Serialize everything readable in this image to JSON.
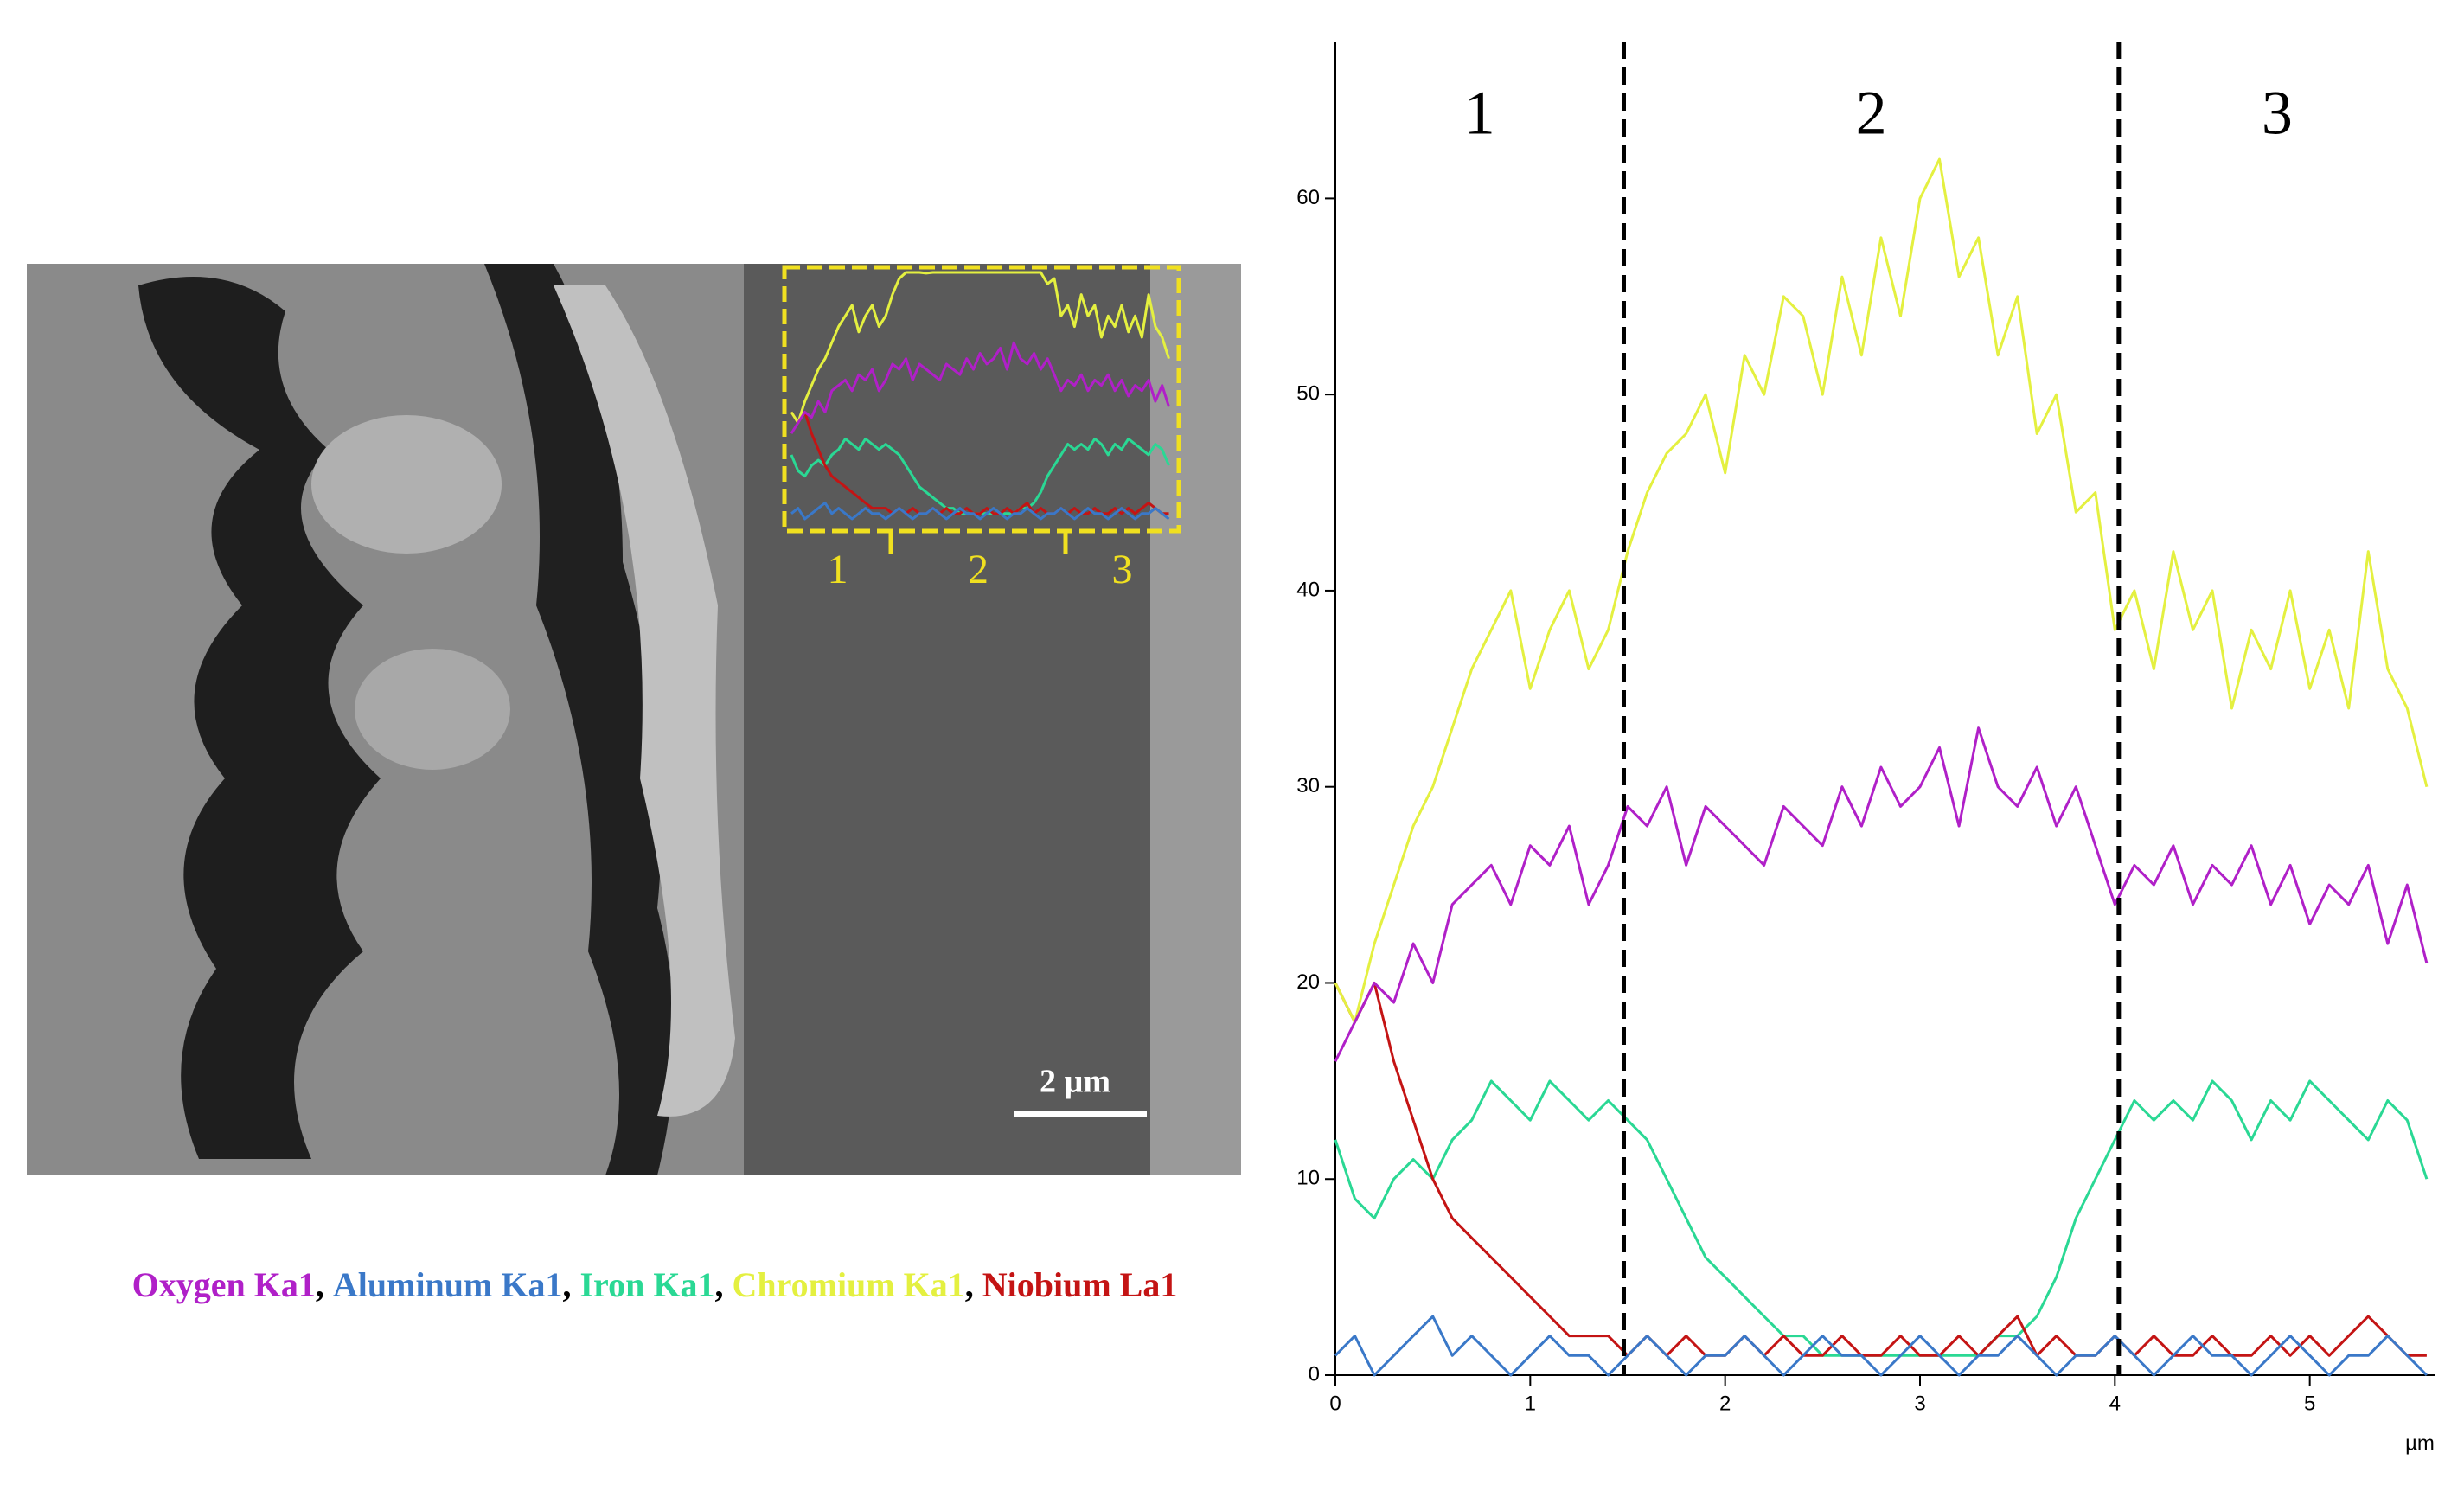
{
  "scale_bar_label": "2 µm",
  "legend_separator": ",",
  "chart_data": {
    "type": "line",
    "x_label": "µm",
    "xlim": [
      0,
      5.645
    ],
    "ylim": [
      0,
      68
    ],
    "xticks": [
      0,
      1,
      2,
      3,
      4,
      5
    ],
    "yticks": [
      0,
      10,
      20,
      30,
      40,
      50,
      60
    ],
    "region_boundaries": [
      1.48,
      4.02
    ],
    "region_labels": [
      "1",
      "2",
      "3"
    ],
    "x": [
      0,
      0.1,
      0.2,
      0.3,
      0.4,
      0.5,
      0.6,
      0.7,
      0.8,
      0.9,
      1.0,
      1.1,
      1.2,
      1.3,
      1.4,
      1.5,
      1.6,
      1.7,
      1.8,
      1.9,
      2.0,
      2.1,
      2.2,
      2.3,
      2.4,
      2.5,
      2.6,
      2.7,
      2.8,
      2.9,
      3.0,
      3.1,
      3.2,
      3.3,
      3.4,
      3.5,
      3.6,
      3.7,
      3.8,
      3.9,
      4.0,
      4.1,
      4.2,
      4.3,
      4.4,
      4.5,
      4.6,
      4.7,
      4.8,
      4.9,
      5.0,
      5.1,
      5.2,
      5.3,
      5.4,
      5.5,
      5.6
    ],
    "series": [
      {
        "name": "Oxygen Ka1",
        "color": "#b020c8",
        "values": [
          16,
          18,
          20,
          19,
          22,
          20,
          24,
          25,
          26,
          24,
          27,
          26,
          28,
          24,
          26,
          29,
          28,
          30,
          26,
          29,
          28,
          27,
          26,
          29,
          28,
          27,
          30,
          28,
          31,
          29,
          30,
          32,
          28,
          33,
          30,
          29,
          31,
          28,
          30,
          27,
          24,
          26,
          25,
          27,
          24,
          26,
          25,
          27,
          24,
          26,
          23,
          25,
          24,
          26,
          22,
          25,
          21
        ]
      },
      {
        "name": "Aluminum Ka1",
        "color": "#3a78c8",
        "values": [
          1,
          2,
          0,
          1,
          2,
          3,
          1,
          2,
          1,
          0,
          1,
          2,
          1,
          1,
          0,
          1,
          2,
          1,
          0,
          1,
          1,
          2,
          1,
          0,
          1,
          2,
          1,
          1,
          0,
          1,
          2,
          1,
          0,
          1,
          1,
          2,
          1,
          0,
          1,
          1,
          2,
          1,
          0,
          1,
          2,
          1,
          1,
          0,
          1,
          2,
          1,
          0,
          1,
          1,
          2,
          1,
          0
        ]
      },
      {
        "name": "Iron Ka1",
        "color": "#2ad894",
        "values": [
          12,
          9,
          8,
          10,
          11,
          10,
          12,
          13,
          15,
          14,
          13,
          15,
          14,
          13,
          14,
          13,
          12,
          10,
          8,
          6,
          5,
          4,
          3,
          2,
          2,
          1,
          1,
          1,
          1,
          1,
          1,
          1,
          1,
          1,
          2,
          2,
          3,
          5,
          8,
          10,
          12,
          14,
          13,
          14,
          13,
          15,
          14,
          12,
          14,
          13,
          15,
          14,
          13,
          12,
          14,
          13,
          10
        ]
      },
      {
        "name": "Chromium Ka1",
        "color": "#e4f040",
        "values": [
          20,
          18,
          22,
          25,
          28,
          30,
          33,
          36,
          38,
          40,
          35,
          38,
          40,
          36,
          38,
          42,
          45,
          47,
          48,
          50,
          46,
          52,
          50,
          55,
          54,
          50,
          56,
          52,
          58,
          54,
          60,
          62,
          56,
          58,
          52,
          55,
          48,
          50,
          44,
          45,
          38,
          40,
          36,
          42,
          38,
          40,
          34,
          38,
          36,
          40,
          35,
          38,
          34,
          42,
          36,
          34,
          30
        ]
      },
      {
        "name": "Niobium La1",
        "color": "#c41414",
        "values": [
          20,
          18,
          20,
          16,
          13,
          10,
          8,
          7,
          6,
          5,
          4,
          3,
          2,
          2,
          2,
          1,
          2,
          1,
          2,
          1,
          1,
          2,
          1,
          2,
          1,
          1,
          2,
          1,
          1,
          2,
          1,
          1,
          2,
          1,
          2,
          3,
          1,
          2,
          1,
          1,
          2,
          1,
          2,
          1,
          1,
          2,
          1,
          1,
          2,
          1,
          2,
          1,
          2,
          3,
          2,
          1,
          1
        ]
      }
    ]
  }
}
